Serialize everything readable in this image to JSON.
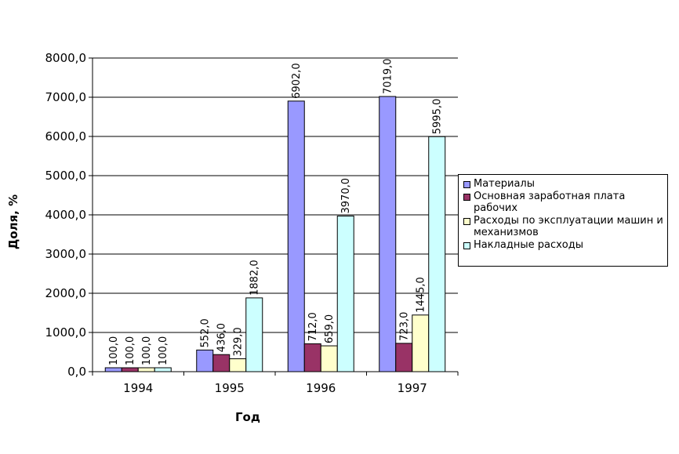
{
  "chart_data": {
    "type": "bar",
    "categories": [
      "1994",
      "1995",
      "1996",
      "1997"
    ],
    "series": [
      {
        "name": "Материалы",
        "color": "#9999FF",
        "values": [
          100.0,
          552.0,
          6902.0,
          7019.0
        ],
        "labels": [
          "100,0",
          "552,0",
          "6902,0",
          "7019,0"
        ]
      },
      {
        "name": "Основная заработная плата рабочих",
        "color": "#993366",
        "values": [
          100.0,
          436.0,
          712.0,
          723.0
        ],
        "labels": [
          "100,0",
          "436,0",
          "712,0",
          "723,0"
        ]
      },
      {
        "name": "Расходы по эксплуатации машин и механизмов",
        "color": "#FFFFCC",
        "values": [
          100.0,
          329.0,
          659.0,
          1445.0
        ],
        "labels": [
          "100,0",
          "329,0",
          "659,0",
          "1445,0"
        ]
      },
      {
        "name": "Накладные расходы",
        "color": "#CCFFFF",
        "values": [
          100.0,
          1882.0,
          3970.0,
          5995.0
        ],
        "labels": [
          "100,0",
          "1882,0",
          "3970,0",
          "5995,0"
        ]
      }
    ],
    "yticks": [
      "0,0",
      "1000,0",
      "2000,0",
      "3000,0",
      "4000,0",
      "5000,0",
      "6000,0",
      "7000,0",
      "8000,0"
    ],
    "ylim": [
      0,
      8000
    ],
    "xlabel": "Год",
    "ylabel": "Доля, %",
    "grid": true,
    "legend": "right"
  }
}
